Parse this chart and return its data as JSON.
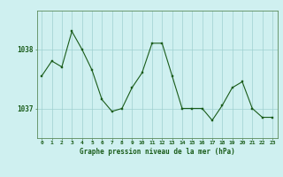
{
  "x": [
    0,
    1,
    2,
    3,
    4,
    5,
    6,
    7,
    8,
    9,
    10,
    11,
    12,
    13,
    14,
    15,
    16,
    17,
    18,
    19,
    20,
    21,
    22,
    23
  ],
  "y": [
    1037.55,
    1037.8,
    1037.7,
    1038.3,
    1038.0,
    1037.65,
    1037.15,
    1036.95,
    1037.0,
    1037.35,
    1037.6,
    1038.1,
    1038.1,
    1037.55,
    1037.0,
    1037.0,
    1037.0,
    1036.8,
    1037.05,
    1037.35,
    1037.45,
    1037.0,
    1036.85,
    1036.85
  ],
  "line_color": "#1a5c1a",
  "marker_color": "#1a5c1a",
  "bg_color": "#cff0f0",
  "grid_color": "#9fd0d0",
  "axis_color": "#5a8a5a",
  "xlabel": "Graphe pression niveau de la mer (hPa)",
  "xlabel_color": "#1a5c1a",
  "tick_color": "#1a5c1a",
  "ytick_labels": [
    "1037",
    "1038"
  ],
  "ytick_values": [
    1037.0,
    1038.0
  ],
  "ylim": [
    1036.5,
    1038.65
  ],
  "xlim": [
    -0.5,
    23.5
  ],
  "xtick_labels": [
    "0",
    "1",
    "2",
    "3",
    "4",
    "5",
    "6",
    "7",
    "8",
    "9",
    "10",
    "11",
    "12",
    "13",
    "14",
    "15",
    "16",
    "17",
    "18",
    "19",
    "20",
    "21",
    "22",
    "23"
  ]
}
